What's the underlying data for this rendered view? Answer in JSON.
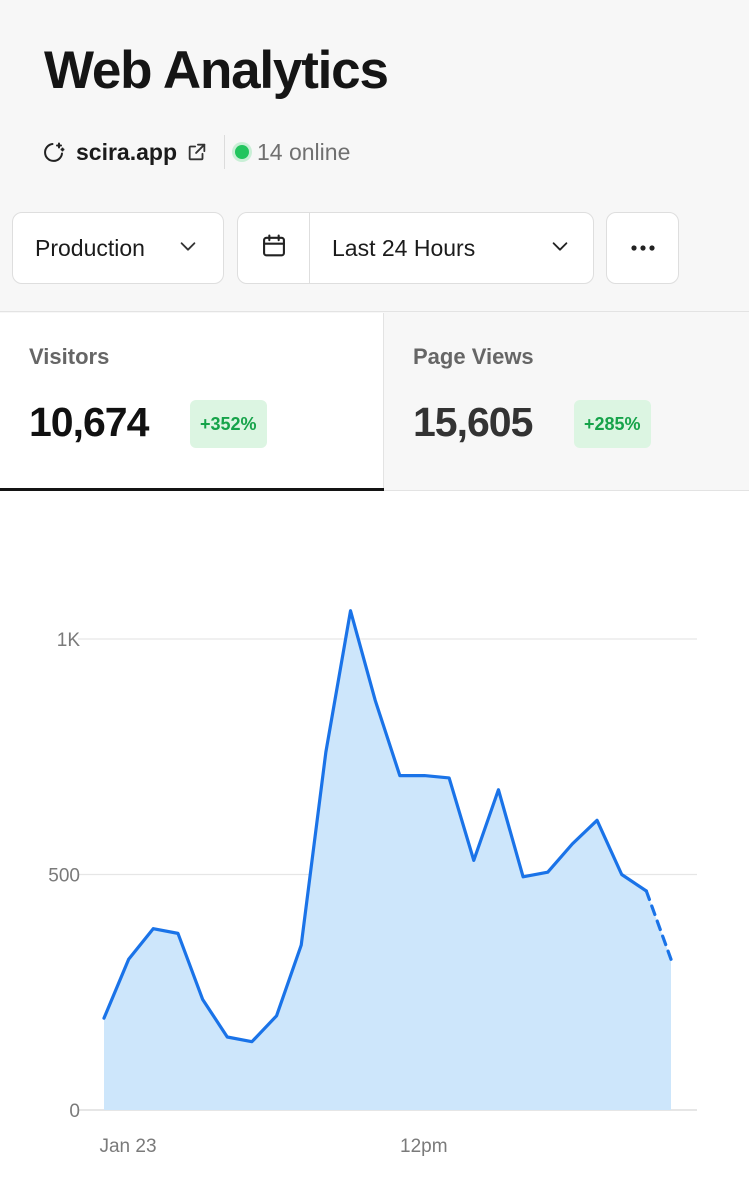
{
  "header": {
    "title": "Web Analytics",
    "site": "scira.app",
    "online": "14 online",
    "icons": {
      "site": "sparkle-loader-icon",
      "external": "external-link-icon"
    },
    "online_color": "#22c55e"
  },
  "controls": {
    "environment": "Production",
    "date_range": "Last 24 Hours",
    "icons": {
      "calendar": "calendar-icon",
      "chevron": "chevron-down-icon",
      "more": "more-horizontal-icon"
    }
  },
  "stats": {
    "visitors": {
      "label": "Visitors",
      "value": "10,674",
      "change": "+352%"
    },
    "page_views": {
      "label": "Page Views",
      "value": "15,605",
      "change": "+285%"
    }
  },
  "colors": {
    "line": "#1a73e8",
    "area": "#cde6fb",
    "badge_bg": "#dcf5e2",
    "badge_text": "#16a34a"
  },
  "chart_data": {
    "type": "area",
    "title": "",
    "xlabel": "",
    "ylabel": "",
    "ylim": [
      0,
      1000
    ],
    "y_ticks": [
      {
        "value": 0,
        "label": "0"
      },
      {
        "value": 500,
        "label": "500"
      },
      {
        "value": 1000,
        "label": "1K"
      }
    ],
    "x_tick_labels": [
      {
        "index": 0,
        "label": "Jan 23"
      },
      {
        "index": 12,
        "label": "12pm"
      }
    ],
    "grid": true,
    "series": [
      {
        "values": [
          195,
          320,
          385,
          375,
          235,
          155,
          145,
          200,
          350,
          760,
          1060,
          870,
          710,
          710,
          705,
          530,
          680,
          495,
          505,
          565,
          615,
          500,
          465,
          320
        ],
        "partial_last_segment": true
      }
    ]
  }
}
